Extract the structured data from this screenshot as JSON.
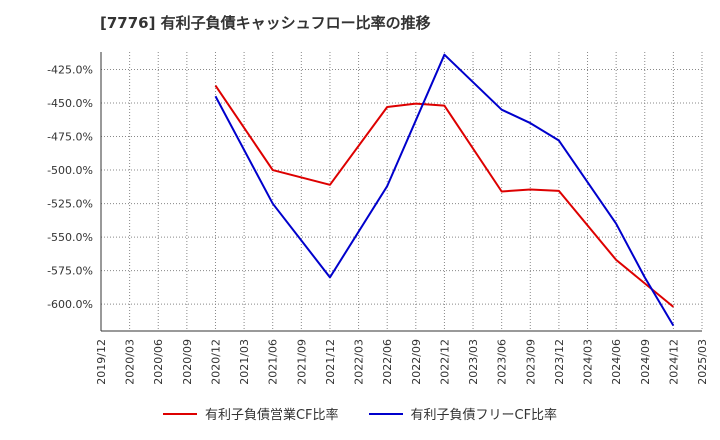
{
  "chart_data": {
    "type": "line",
    "title": "[7776]  有利子負債キャッシュフロー比率の推移",
    "x": [
      "2019/12",
      "2020/03",
      "2020/06",
      "2020/09",
      "2020/12",
      "2021/03",
      "2021/06",
      "2021/09",
      "2021/12",
      "2022/03",
      "2022/06",
      "2022/09",
      "2022/12",
      "2023/03",
      "2023/06",
      "2023/09",
      "2023/12",
      "2024/03",
      "2024/06",
      "2024/09",
      "2024/12",
      "2025/03"
    ],
    "y_ticks": [
      "-425.0%",
      "-450.0%",
      "-475.0%",
      "-500.0%",
      "-525.0%",
      "-550.0%",
      "-575.0%",
      "-600.0%"
    ],
    "ylim": [
      -620,
      -412
    ],
    "grid": true,
    "legend_position": "bottom",
    "series": [
      {
        "name": "有利子負債営業CF比率",
        "color": "#dd0000",
        "points": [
          {
            "x": "2020/12",
            "y": -437
          },
          {
            "x": "2021/06",
            "y": -500
          },
          {
            "x": "2021/12",
            "y": -511
          },
          {
            "x": "2022/06",
            "y": -453
          },
          {
            "x": "2022/09",
            "y": -450.5
          },
          {
            "x": "2022/12",
            "y": -452
          },
          {
            "x": "2023/06",
            "y": -516
          },
          {
            "x": "2023/09",
            "y": -514.5
          },
          {
            "x": "2023/12",
            "y": -515.5
          },
          {
            "x": "2024/06",
            "y": -567
          },
          {
            "x": "2024/12",
            "y": -602
          }
        ]
      },
      {
        "name": "有利子負債フリーCF比率",
        "color": "#0000cc",
        "points": [
          {
            "x": "2020/12",
            "y": -445
          },
          {
            "x": "2021/06",
            "y": -525
          },
          {
            "x": "2021/12",
            "y": -580
          },
          {
            "x": "2022/06",
            "y": -512
          },
          {
            "x": "2022/12",
            "y": -414
          },
          {
            "x": "2023/06",
            "y": -455
          },
          {
            "x": "2023/09",
            "y": -465
          },
          {
            "x": "2023/12",
            "y": -478
          },
          {
            "x": "2024/06",
            "y": -540
          },
          {
            "x": "2024/09",
            "y": -580
          },
          {
            "x": "2024/12",
            "y": -616
          }
        ]
      }
    ]
  }
}
